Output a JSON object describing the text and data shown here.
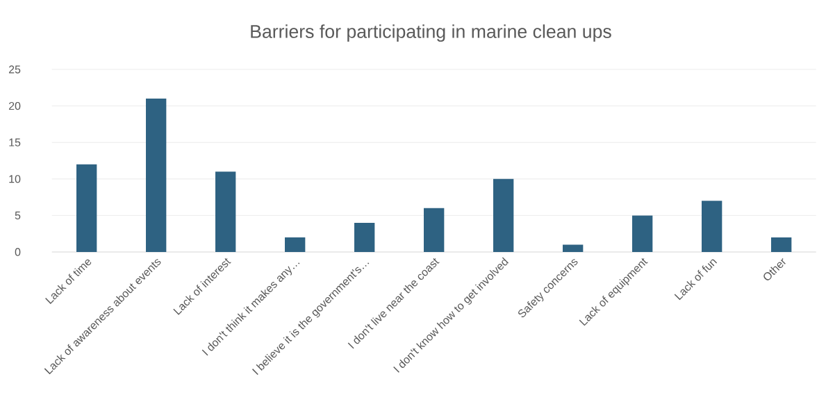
{
  "chart_data": {
    "type": "bar",
    "title": "Barriers for participating in marine clean ups",
    "categories": [
      "Lack of time",
      "Lack of awareness about events",
      "Lack of interest",
      "I don't think it makes any…",
      "I believe it is the government's…",
      "I don't live near the coast",
      "I don't know how to get involved",
      "Safety concerns",
      "Lack of equipment",
      "Lack of fun",
      "Other"
    ],
    "values": [
      12,
      21,
      11,
      2,
      4,
      6,
      10,
      1,
      5,
      7,
      2
    ],
    "color": "#2e6282",
    "ylim": [
      0,
      25
    ],
    "yticks": [
      0,
      5,
      10,
      15,
      20,
      25
    ],
    "grid": "y"
  }
}
